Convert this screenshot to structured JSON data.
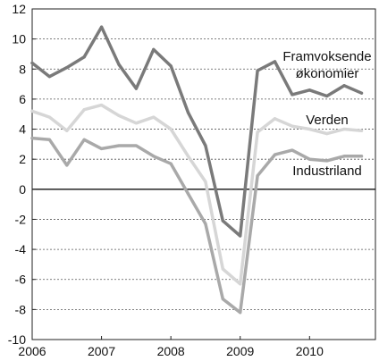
{
  "chart_data": {
    "type": "line",
    "title": "",
    "xlabel": "",
    "ylabel": "",
    "x": [
      2006.0,
      2006.25,
      2006.5,
      2006.75,
      2007.0,
      2007.25,
      2007.5,
      2007.75,
      2008.0,
      2008.25,
      2008.5,
      2008.75,
      2009.0,
      2009.25,
      2009.5,
      2009.75,
      2010.0,
      2010.25,
      2010.5,
      2010.75
    ],
    "xlim": [
      2006.0,
      2010.95
    ],
    "ylim": [
      -10,
      12
    ],
    "x_ticks": [
      2006,
      2007,
      2008,
      2009,
      2010
    ],
    "x_tick_labels": [
      "2006",
      "2007",
      "2008",
      "2009",
      "2010"
    ],
    "y_ticks": [
      -10,
      -8,
      -6,
      -4,
      -2,
      0,
      2,
      4,
      6,
      8,
      10,
      12
    ],
    "y_tick_labels": [
      "-10",
      "-8",
      "-6",
      "-4",
      "-2",
      "0",
      "2",
      "4",
      "6",
      "8",
      "10",
      "12"
    ],
    "grid": true,
    "zero_line": true,
    "series": [
      {
        "name": "Framvoksende økonomier",
        "label_lines": [
          "Framvoksende",
          "økonomier"
        ],
        "color": "#7a7a7a",
        "values": [
          8.4,
          7.5,
          8.1,
          8.8,
          10.8,
          8.3,
          6.7,
          9.3,
          8.2,
          5.1,
          2.9,
          -2.1,
          -3.1,
          7.9,
          8.5,
          6.3,
          6.6,
          6.2,
          6.9,
          6.4
        ]
      },
      {
        "name": "Verden",
        "label_lines": [
          "Verden"
        ],
        "color": "#d6d6d6",
        "values": [
          5.2,
          4.8,
          3.9,
          5.3,
          5.6,
          4.9,
          4.4,
          4.8,
          4.0,
          2.2,
          0.5,
          -5.3,
          -6.3,
          3.8,
          4.7,
          4.2,
          4.0,
          3.7,
          4.0,
          3.9
        ]
      },
      {
        "name": "Industriland",
        "label_lines": [
          "Industriland"
        ],
        "color": "#a9a9a9",
        "values": [
          3.4,
          3.3,
          1.6,
          3.3,
          2.7,
          2.9,
          2.9,
          2.2,
          1.7,
          -0.3,
          -2.3,
          -7.3,
          -8.2,
          0.9,
          2.3,
          2.6,
          2.0,
          1.9,
          2.2,
          2.2
        ]
      }
    ]
  }
}
